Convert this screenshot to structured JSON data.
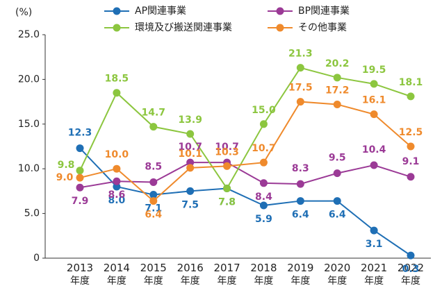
{
  "chart_data": {
    "type": "line",
    "y_label": "(%)",
    "categories": [
      "2013年度",
      "2014年度",
      "2015年度",
      "2016年度",
      "2017年度",
      "2018年度",
      "2019年度",
      "2020年度",
      "2021年度",
      "2022年度"
    ],
    "ylim": [
      0,
      25
    ],
    "yticks": [
      0,
      {
        "value": 5,
        "label": "5.0"
      },
      {
        "value": 10,
        "label": "10.0"
      },
      {
        "value": 15,
        "label": "15.0"
      },
      {
        "value": 20,
        "label": "20.0"
      },
      {
        "value": 25,
        "label": "25.0"
      }
    ],
    "legend": "top",
    "series": [
      {
        "name": "AP関連事業",
        "color": "#1f6fb5",
        "values": [
          12.3,
          8.0,
          7.1,
          7.5,
          7.8,
          5.9,
          6.4,
          6.4,
          3.1,
          0.3
        ],
        "value_labels": [
          "12.3",
          "8.0",
          "7.1",
          "7.5",
          "7.8",
          "5.9",
          "6.4",
          "6.4",
          "3.1",
          "0.3"
        ]
      },
      {
        "name": "BP関連事業",
        "color": "#9b3a96",
        "values": [
          7.9,
          8.6,
          8.5,
          10.7,
          10.7,
          8.4,
          8.3,
          9.5,
          10.4,
          9.1
        ],
        "value_labels": [
          "7.9",
          "8.6",
          "8.5",
          "10.7",
          "10.7",
          "8.4",
          "8.3",
          "9.5",
          "10.4",
          "9.1"
        ]
      },
      {
        "name": "環境及び搬送関連事業",
        "color": "#8cc63f",
        "values": [
          9.8,
          18.5,
          14.7,
          13.9,
          7.8,
          15.0,
          21.3,
          20.2,
          19.5,
          18.1
        ],
        "value_labels": [
          "9.8",
          "18.5",
          "14.7",
          "13.9",
          "7.8",
          "15.0",
          "21.3",
          "20.2",
          "19.5",
          "18.1"
        ]
      },
      {
        "name": "その他事業",
        "color": "#ef8a2c",
        "values": [
          9.0,
          10.0,
          6.4,
          10.1,
          10.3,
          10.7,
          17.5,
          17.2,
          16.1,
          12.5
        ],
        "value_labels": [
          "9.0",
          "10.0",
          "6.4",
          "10.1",
          "10.3",
          "10.7",
          "17.5",
          "17.2",
          "16.1",
          "12.5"
        ]
      }
    ]
  }
}
